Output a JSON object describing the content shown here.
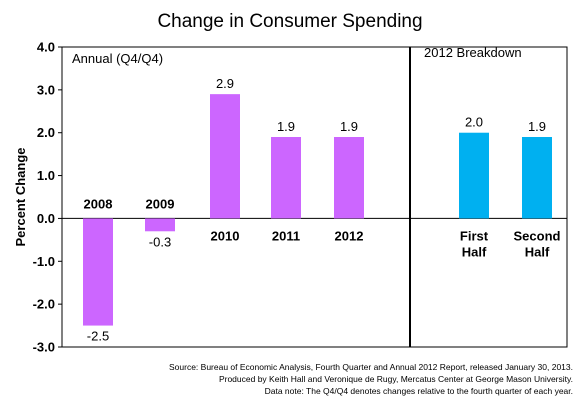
{
  "chart_data": {
    "type": "bar",
    "title": "Change in Consumer Spending",
    "ylabel": "Percent Change",
    "xlabel": "",
    "ylim": [
      -3.0,
      4.0
    ],
    "yticks": [
      "4.0",
      "3.0",
      "2.0",
      "1.0",
      "0.0",
      "-1.0",
      "-2.0",
      "-3.0"
    ],
    "ytick_values": [
      4,
      3,
      2,
      1,
      0,
      -1,
      -2,
      -3
    ],
    "grid": false,
    "legend": "none",
    "panels": [
      {
        "label": "Annual (Q4/Q4)",
        "color": "#cc66ff",
        "categories": [
          [
            "2008"
          ],
          [
            "2009"
          ],
          [
            "2010"
          ],
          [
            "2011"
          ],
          [
            "2012"
          ]
        ],
        "values": [
          -2.5,
          -0.3,
          2.9,
          1.9,
          1.9
        ],
        "value_labels": [
          "-2.5",
          "-0.3",
          "2.9",
          "1.9",
          "1.9"
        ]
      },
      {
        "label": "2012 Breakdown",
        "color": "#00b0f0",
        "categories": [
          [
            "First",
            "Half"
          ],
          [
            "Second",
            "Half"
          ]
        ],
        "values": [
          2.0,
          1.9
        ],
        "value_labels": [
          "2.0",
          "1.9"
        ]
      }
    ]
  },
  "source": [
    "Source: Bureau of Economic Analysis, Fourth Quarter and Annual 2012 Report, released January 30, 2013.",
    "Produced by Keith Hall and Veronique de Rugy, Mercatus Center at George Mason University.",
    "Data note: The Q4/Q4 denotes changes relative to the fourth quarter of each year."
  ]
}
